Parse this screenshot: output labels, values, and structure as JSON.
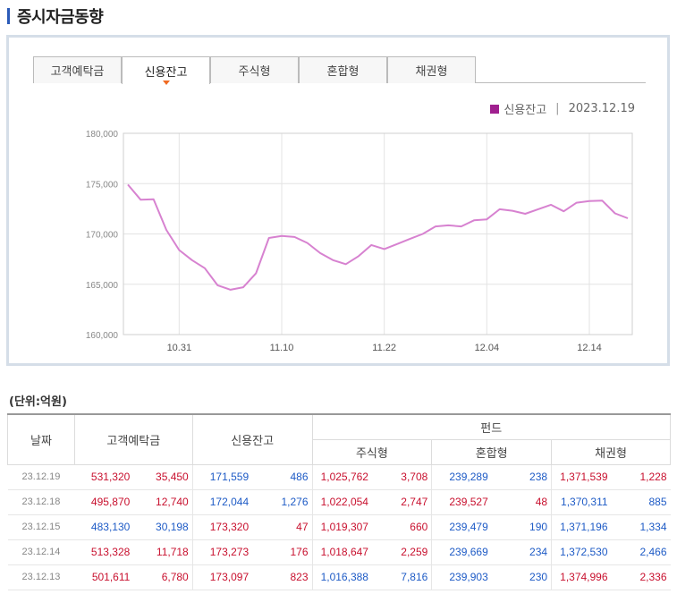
{
  "page": {
    "title": "증시자금동향"
  },
  "tabs": [
    {
      "label": "고객예탁금",
      "active": false
    },
    {
      "label": "신용잔고",
      "active": true
    },
    {
      "label": "주식형",
      "active": false
    },
    {
      "label": "혼합형",
      "active": false
    },
    {
      "label": "채권형",
      "active": false
    }
  ],
  "legend": {
    "series": "신용잔고",
    "separator": "|",
    "date": "2023.12.19",
    "color": "#a0208f"
  },
  "chart_data": {
    "type": "line",
    "ylim": [
      160000,
      180000
    ],
    "yticks": [
      "160,000",
      "165,000",
      "170,000",
      "175,000",
      "180,000"
    ],
    "xticks": [
      {
        "label": "10.31",
        "index": 4
      },
      {
        "label": "11.10",
        "index": 12
      },
      {
        "label": "11.22",
        "index": 20
      },
      {
        "label": "12.04",
        "index": 28
      },
      {
        "label": "12.14",
        "index": 36
      }
    ],
    "series": [
      {
        "name": "신용잔고",
        "color": "#d782d0",
        "values": [
          174900,
          173400,
          173450,
          170400,
          168400,
          167400,
          166600,
          164900,
          164450,
          164700,
          166100,
          169600,
          169800,
          169700,
          169100,
          168100,
          167400,
          167000,
          167800,
          168900,
          168500,
          169000,
          169500,
          170000,
          170750,
          170850,
          170750,
          171350,
          171450,
          172450,
          172300,
          172000,
          172450,
          172900,
          172250,
          173100,
          173273,
          173320,
          172044,
          171559
        ]
      }
    ]
  },
  "table": {
    "unit_label": "(단위:억원)",
    "headers": {
      "date": "날짜",
      "deposit": "고객예탁금",
      "credit": "신용잔고",
      "fund": "펀드",
      "stock": "주식형",
      "mixed": "혼합형",
      "bond": "채권형"
    },
    "rows": [
      {
        "date": "23.12.19",
        "deposit": "531,320",
        "deposit_chg": "35,450",
        "deposit_up": true,
        "credit": "171,559",
        "credit_chg": "486",
        "credit_up": false,
        "stock": "1,025,762",
        "stock_chg": "3,708",
        "stock_up": true,
        "mixed": "239,289",
        "mixed_chg": "238",
        "mixed_up": false,
        "bond": "1,371,539",
        "bond_chg": "1,228",
        "bond_up": true
      },
      {
        "date": "23.12.18",
        "deposit": "495,870",
        "deposit_chg": "12,740",
        "deposit_up": true,
        "credit": "172,044",
        "credit_chg": "1,276",
        "credit_up": false,
        "stock": "1,022,054",
        "stock_chg": "2,747",
        "stock_up": true,
        "mixed": "239,527",
        "mixed_chg": "48",
        "mixed_up": true,
        "bond": "1,370,311",
        "bond_chg": "885",
        "bond_up": false
      },
      {
        "date": "23.12.15",
        "deposit": "483,130",
        "deposit_chg": "30,198",
        "deposit_up": false,
        "credit": "173,320",
        "credit_chg": "47",
        "credit_up": true,
        "stock": "1,019,307",
        "stock_chg": "660",
        "stock_up": true,
        "mixed": "239,479",
        "mixed_chg": "190",
        "mixed_up": false,
        "bond": "1,371,196",
        "bond_chg": "1,334",
        "bond_up": false
      },
      {
        "date": "23.12.14",
        "deposit": "513,328",
        "deposit_chg": "11,718",
        "deposit_up": true,
        "credit": "173,273",
        "credit_chg": "176",
        "credit_up": true,
        "stock": "1,018,647",
        "stock_chg": "2,259",
        "stock_up": true,
        "mixed": "239,669",
        "mixed_chg": "234",
        "mixed_up": false,
        "bond": "1,372,530",
        "bond_chg": "2,466",
        "bond_up": false
      },
      {
        "date": "23.12.13",
        "deposit": "501,611",
        "deposit_chg": "6,780",
        "deposit_up": true,
        "credit": "173,097",
        "credit_chg": "823",
        "credit_up": true,
        "stock": "1,016,388",
        "stock_chg": "7,816",
        "stock_up": false,
        "mixed": "239,903",
        "mixed_chg": "230",
        "mixed_up": false,
        "bond": "1,374,996",
        "bond_chg": "2,336",
        "bond_up": true
      }
    ]
  }
}
